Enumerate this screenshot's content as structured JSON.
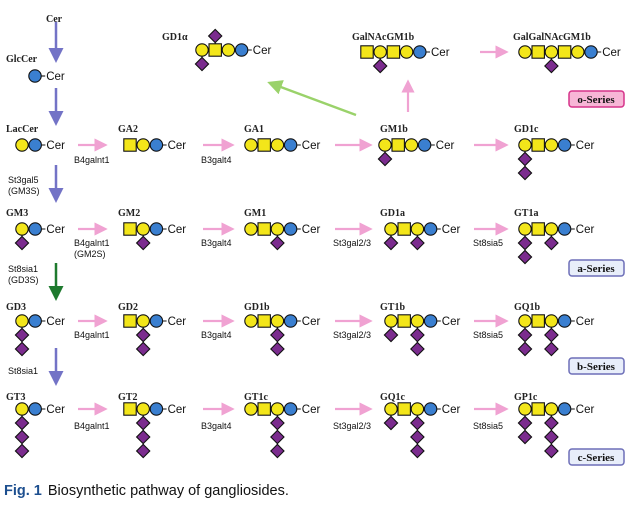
{
  "colors": {
    "galactose": "#f3e61a",
    "glucose": "#3a7fd0",
    "galnac": "#f3e61a",
    "sialic_acid": "#7b2c8e",
    "arrow_pink": "#f0a2d2",
    "arrow_blue": "#7373c6",
    "arrow_green": "#1e7a2e",
    "arrow_lightgreen": "#9ad26a",
    "o_series_border": "#d6338a",
    "o_series_fill": "#f7b6d6",
    "series_border": "#6d6fb8",
    "series_fill": "#e8eefa"
  },
  "ceramide_label": "Cer",
  "compounds": [
    {
      "id": "cer",
      "label": "Cer"
    },
    {
      "id": "glccer",
      "label": "GlcCer"
    },
    {
      "id": "laccer",
      "label": "LacCer"
    },
    {
      "id": "ga2",
      "label": "GA2"
    },
    {
      "id": "ga1",
      "label": "GA1"
    },
    {
      "id": "gm1b",
      "label": "GM1b"
    },
    {
      "id": "gd1c",
      "label": "GD1c"
    },
    {
      "id": "gd1alpha",
      "label": "GD1α"
    },
    {
      "id": "galnacgm1b",
      "label": "GalNAcGM1b"
    },
    {
      "id": "galgalnacgm1b",
      "label": "GalGalNAcGM1b"
    },
    {
      "id": "gm3",
      "label": "GM3"
    },
    {
      "id": "gm2",
      "label": "GM2"
    },
    {
      "id": "gm1",
      "label": "GM1"
    },
    {
      "id": "gd1a",
      "label": "GD1a"
    },
    {
      "id": "gt1a",
      "label": "GT1a"
    },
    {
      "id": "gd3",
      "label": "GD3"
    },
    {
      "id": "gd2",
      "label": "GD2"
    },
    {
      "id": "gd1b",
      "label": "GD1b"
    },
    {
      "id": "gt1b",
      "label": "GT1b"
    },
    {
      "id": "gq1b",
      "label": "GQ1b"
    },
    {
      "id": "gt3",
      "label": "GT3"
    },
    {
      "id": "gt2",
      "label": "GT2"
    },
    {
      "id": "gt1c",
      "label": "GT1c"
    },
    {
      "id": "gq1c",
      "label": "GQ1c"
    },
    {
      "id": "gp1c",
      "label": "GP1c"
    }
  ],
  "enzymes": {
    "b4galnt1": "B4galnt1",
    "b4galnt1_gm2s_1": "B4galnt1",
    "b4galnt1_gm2s_2": "(GM2S)",
    "b3galt4": "B3galt4",
    "st3gal23": "St3gal2/3",
    "st8sia5": "St8sia5",
    "st3gal5_1": "St3gal5",
    "st3gal5_2": "(GM3S)",
    "st8sia1_gd3s_1": "St8sia1",
    "st8sia1_gd3s_2": "(GD3S)",
    "st8sia1": "St8sia1"
  },
  "series": {
    "o": "o-Series",
    "a": "a-Series",
    "b": "b-Series",
    "c": "c-Series"
  },
  "caption": {
    "label": "Fig. 1",
    "text": "Biosynthetic pathway of gangliosides."
  }
}
